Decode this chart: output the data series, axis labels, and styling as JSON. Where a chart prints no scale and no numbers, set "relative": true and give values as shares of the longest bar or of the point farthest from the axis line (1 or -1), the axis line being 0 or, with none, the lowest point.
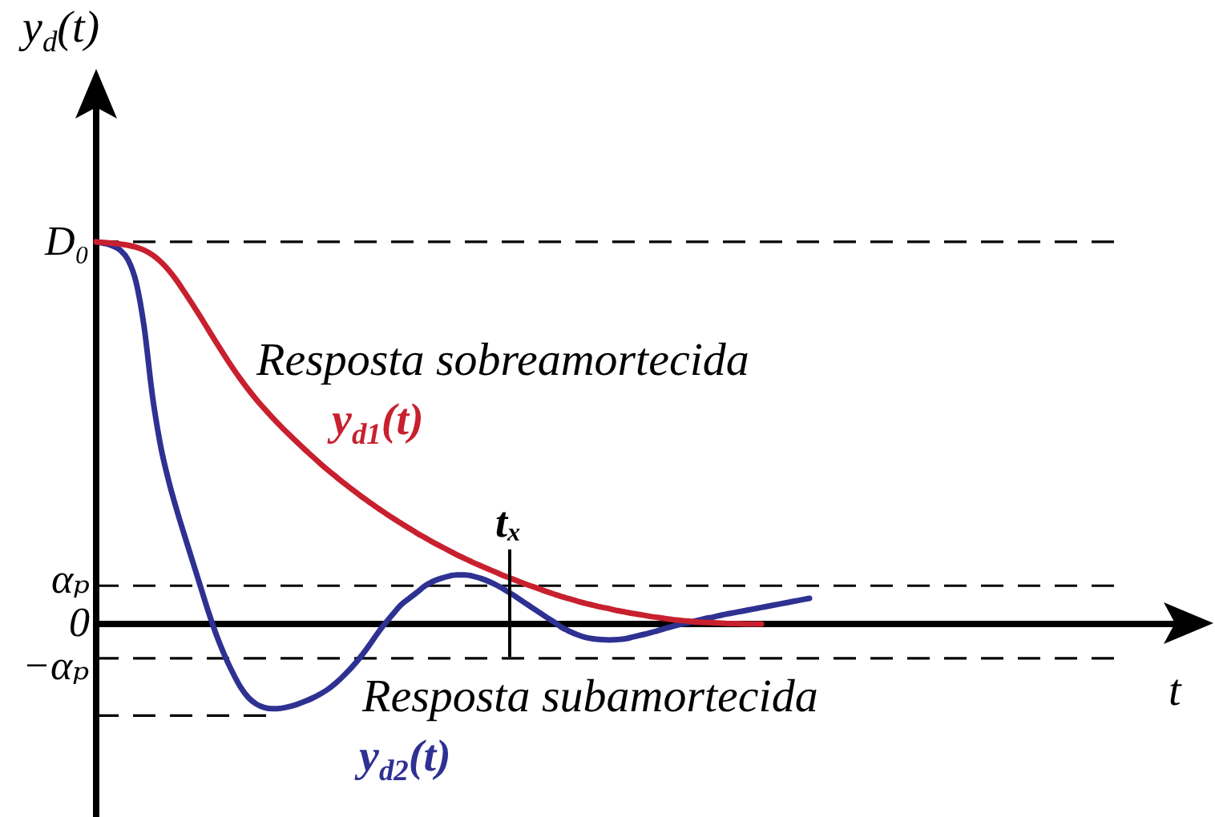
{
  "chart_data": {
    "type": "line",
    "relative": true,
    "ylabel": "y$_{d}$(t)",
    "xlabel": "t",
    "categories": [
      null,
      null,
      null,
      null,
      null,
      null,
      null,
      null,
      null,
      null,
      null,
      null,
      null,
      null,
      null,
      null,
      null,
      null,
      null,
      null,
      null,
      null,
      null,
      null,
      null,
      null,
      null,
      null,
      null,
      null,
      null,
      null,
      null,
      null,
      null,
      null,
      null,
      null,
      null,
      null,
      null,
      null,
      null,
      null,
      null,
      null,
      null,
      null,
      null,
      null,
      null,
      null,
      null,
      null,
      null,
      null,
      null,
      null,
      null,
      null,
      null,
      null,
      null,
      null,
      null,
      null,
      null,
      null,
      null,
      null,
      null,
      null,
      null,
      null,
      null,
      null,
      null,
      null,
      null,
      null,
      null,
      null,
      null,
      null,
      null,
      null,
      null,
      null,
      null,
      null,
      null,
      null,
      null,
      null,
      null,
      null,
      null,
      null,
      null,
      null,
      null,
      null,
      null,
      null,
      null,
      null,
      null,
      null,
      null,
      null,
      null,
      null,
      null,
      null,
      null,
      null,
      null,
      null,
      null,
      null,
      null,
      null,
      null,
      null,
      null,
      null,
      null,
      null,
      null
    ],
    "series": [
      {
        "name": "y$_{d1}$(t)",
        "color": "#c8202e",
        "values": [
          1,
          0.998,
          0.996,
          0.994,
          0.991,
          0.986,
          0.978,
          0.966,
          0.949,
          0.927,
          0.9,
          0.869,
          0.837,
          0.804,
          0.77,
          0.736,
          0.703,
          0.671,
          0.641,
          0.613,
          0.587,
          0.563,
          0.54,
          0.518,
          0.497,
          0.477,
          0.457,
          0.438,
          0.419,
          0.401,
          0.384,
          0.367,
          0.351,
          0.335,
          0.32,
          0.305,
          0.291,
          0.277,
          0.264,
          0.251,
          0.238,
          0.226,
          0.214,
          0.203,
          0.192,
          0.181,
          0.171,
          0.161,
          0.152,
          0.143,
          0.134,
          0.125,
          0.117,
          0.109,
          0.101,
          0.094,
          0.086,
          0.079,
          0.072,
          0.066,
          0.06,
          0.054,
          0.049,
          0.044,
          0.04,
          0.035,
          0.031,
          0.027,
          0.024,
          0.02,
          0.017,
          0.014,
          0.011,
          0.009,
          0.007,
          0.005,
          0.004,
          0.003,
          0.002,
          0.001,
          0.001,
          0,
          0,
          0,
          null,
          null,
          null,
          null,
          null,
          null,
          null,
          null,
          null,
          null,
          null,
          null,
          null,
          null,
          null,
          null,
          null,
          null,
          null,
          null,
          null,
          null,
          null,
          null,
          null,
          null,
          null,
          null,
          null,
          null,
          null,
          null,
          null,
          null,
          null,
          null,
          null,
          null,
          null,
          null,
          null,
          null,
          null,
          null,
          null
        ]
      },
      {
        "name": "y$_{d2}$(t)",
        "color": "#2e3192",
        "values": [
          1,
          0.996,
          0.99,
          0.978,
          0.952,
          0.893,
          0.775,
          0.6,
          0.47,
          0.378,
          0.302,
          0.233,
          0.166,
          0.099,
          0.032,
          -0.029,
          -0.081,
          -0.126,
          -0.165,
          -0.193,
          -0.21,
          -0.219,
          -0.222,
          -0.221,
          -0.217,
          -0.211,
          -0.203,
          -0.194,
          -0.183,
          -0.17,
          -0.153,
          -0.133,
          -0.111,
          -0.086,
          -0.058,
          -0.028,
          0,
          0.025,
          0.049,
          0.066,
          0.082,
          0.099,
          0.111,
          0.119,
          0.125,
          0.128,
          0.128,
          0.125,
          0.119,
          0.111,
          0.101,
          0.089,
          0.076,
          0.062,
          0.048,
          0.034,
          0.02,
          0.007,
          -0.008,
          -0.019,
          -0.028,
          -0.035,
          -0.039,
          -0.041,
          -0.042,
          -0.041,
          -0.039,
          -0.034,
          -0.029,
          -0.024,
          -0.018,
          -0.012,
          -0.006,
          -0.001,
          0.004,
          0.009,
          0.014,
          0.018,
          0.023,
          0.027,
          0.031,
          0.035,
          0.039,
          0.043,
          0.047,
          0.051,
          0.055,
          0.059,
          0.063,
          0.067,
          null,
          null,
          null,
          null,
          null,
          null,
          null,
          null,
          null,
          null,
          null,
          null,
          null,
          null,
          null,
          null,
          null,
          null,
          null,
          null,
          null,
          null,
          null,
          null,
          null,
          null,
          null,
          null,
          null,
          null,
          null,
          null,
          null,
          null,
          null,
          null,
          null,
          null,
          null
        ]
      }
    ],
    "ref_lines": [
      {
        "axis": "y",
        "value": 1,
        "label": "D₀",
        "line_style": "dashed"
      },
      {
        "axis": "y",
        "value": 0.1,
        "label": "αₚ",
        "line_style": "dashed"
      },
      {
        "axis": "y",
        "value": 0,
        "label": "0",
        "line_style": "solid"
      },
      {
        "axis": "y",
        "value": -0.09,
        "label": "−αₚ",
        "line_style": "dashed"
      },
      {
        "axis": "y",
        "value": -0.24,
        "line_style": "dashed"
      }
    ],
    "annotations": [
      "Resposta sobreamortecida",
      "Resposta subamortecida",
      "tₓ"
    ]
  }
}
